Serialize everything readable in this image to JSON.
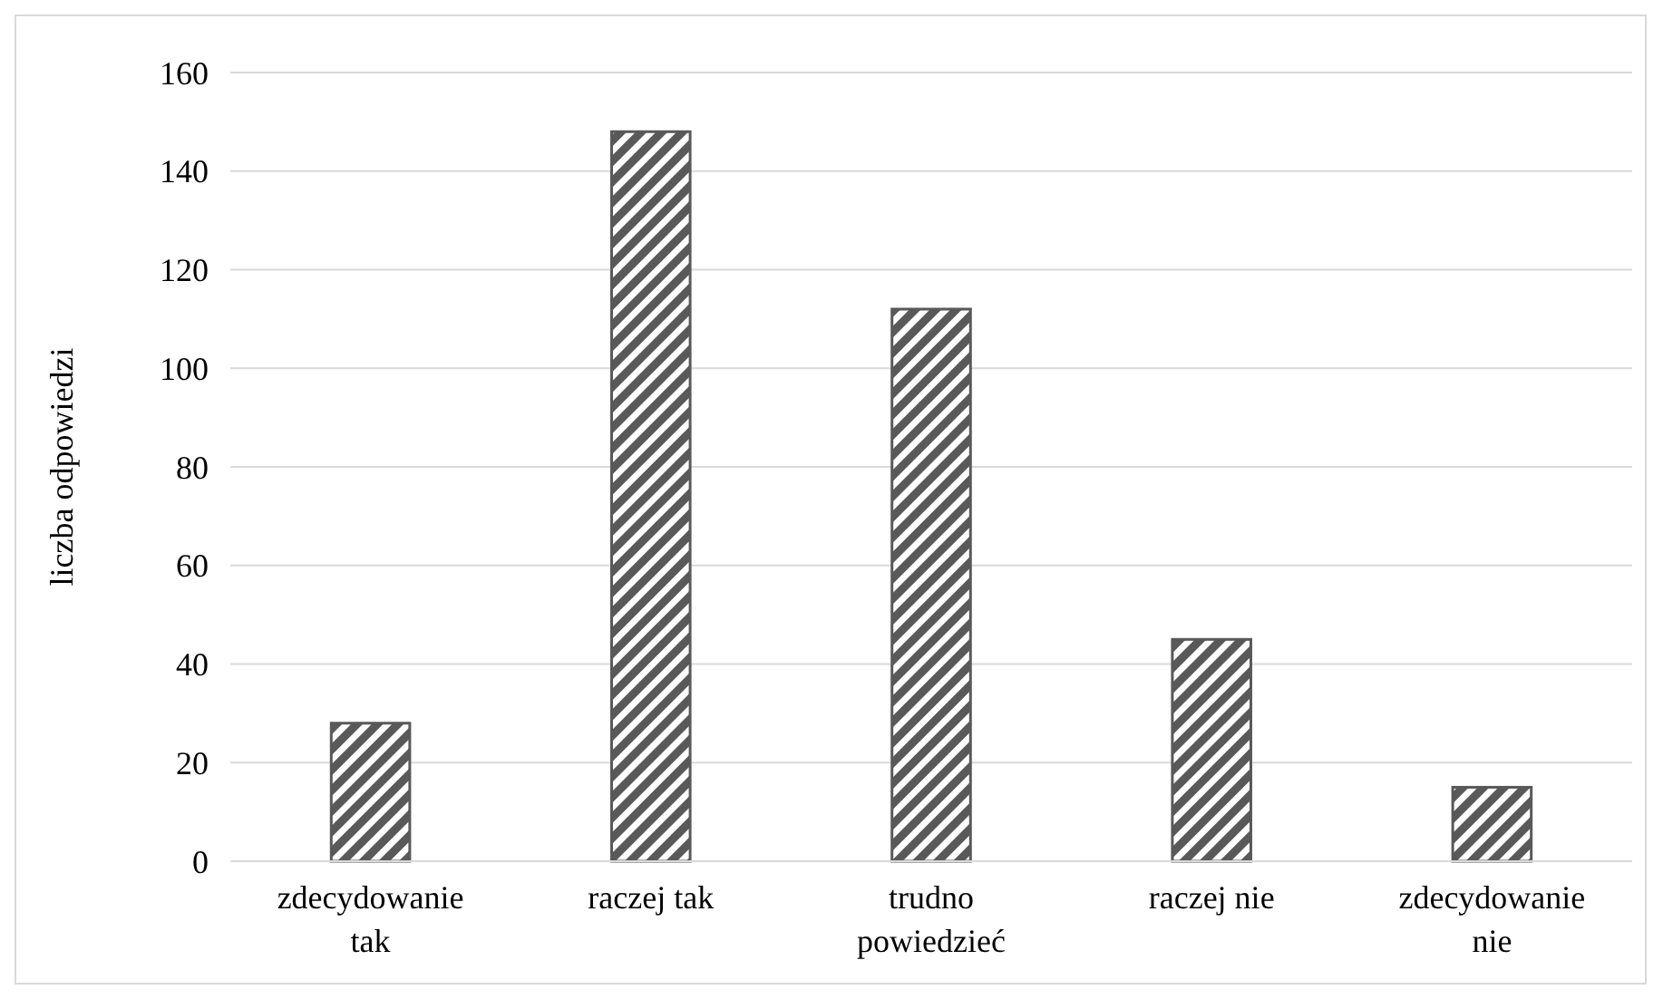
{
  "chart_data": {
    "type": "bar",
    "ylabel": "liczba odpowiedzi",
    "categories": [
      "zdecydowanie tak",
      "raczej tak",
      "trudno powiedzieć",
      "raczej nie",
      "zdecydowanie nie"
    ],
    "values": [
      28,
      148,
      112,
      45,
      15
    ],
    "color": "#595959",
    "ylim": [
      0,
      160
    ],
    "yticks": [
      0,
      20,
      40,
      60,
      80,
      100,
      120,
      140,
      160
    ],
    "grid": "y"
  }
}
